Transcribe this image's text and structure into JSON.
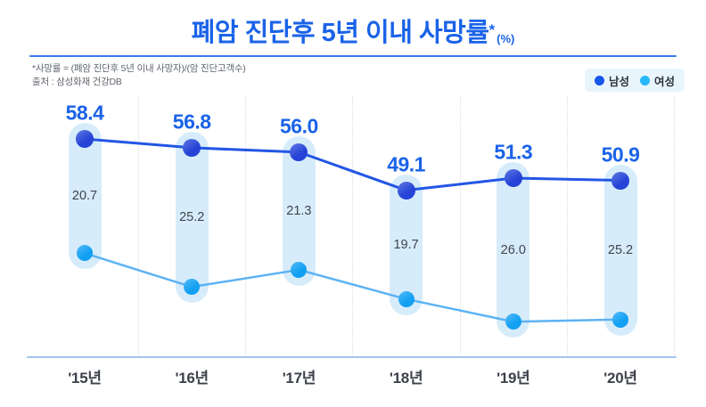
{
  "title": {
    "text": "폐암 진단후 5년 이내 사망률",
    "asterisk": "*",
    "unit": "(%)"
  },
  "footnote": {
    "line1": "*사망률 = (폐암 진단후 5년 이내 사망자)/(암 진단고객수)",
    "line2": "출처 : 삼성화재 건강DB"
  },
  "legend": [
    {
      "label": "남성",
      "color": "#1558e9"
    },
    {
      "label": "여성",
      "color": "#25b7f8"
    }
  ],
  "chart_data": {
    "type": "line",
    "title": "폐암 진단후 5년 이내 사망률 (%)",
    "categories": [
      "'15년",
      "'16년",
      "'17년",
      "'18년",
      "'19년",
      "'20년"
    ],
    "series": [
      {
        "name": "남성",
        "color": "#2256e4",
        "value_labels": [
          "58.4",
          "56.8",
          "56.0",
          "49.1",
          "51.3",
          "50.9"
        ],
        "values": [
          58.4,
          56.8,
          56.0,
          49.1,
          51.3,
          50.9
        ]
      },
      {
        "name": "여성",
        "color": "#5cb3f4",
        "values": [
          37.7,
          31.6,
          34.7,
          29.4,
          25.3,
          25.7
        ]
      }
    ],
    "gap_value_labels": [
      "20.7",
      "25.2",
      "21.3",
      "19.7",
      "26.0",
      "25.2"
    ],
    "gap_values": [
      20.7,
      25.2,
      21.3,
      19.7,
      26.0,
      25.2
    ],
    "ylim": [
      24,
      60
    ],
    "grid": "dotted vertical lines between categories",
    "legend_position": "top-right",
    "annotations": "남성 values labeled above dots; gap (남성−여성) labeled inside vertical pills connecting the two series"
  },
  "colors": {
    "title": "#1a63e8",
    "divider": "#3b7ae9",
    "footnote": "#60666e",
    "legend_bg": "#e9f5fd",
    "legend_text": "#2f3540",
    "male_line": "#2256e4",
    "male_dot": "#2544d7",
    "female_line": "#5cb3f4",
    "female_dot": "#12a0f3",
    "pill": "#d7ecfa",
    "gridline": "#d8dce2",
    "axis": "#a5c3f1",
    "value_label": "#1a63e8",
    "gap_label": "#40454d",
    "xlabel": "#3c414a"
  }
}
